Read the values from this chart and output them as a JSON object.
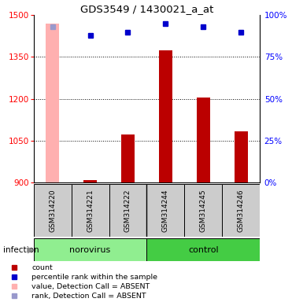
{
  "title": "GDS3549 / 1430021_a_at",
  "samples": [
    "GSM314220",
    "GSM314221",
    "GSM314222",
    "GSM314244",
    "GSM314245",
    "GSM314246"
  ],
  "groups": [
    "norovirus",
    "norovirus",
    "norovirus",
    "control",
    "control",
    "control"
  ],
  "group_labels": [
    "norovirus",
    "control"
  ],
  "group_factor": "infection",
  "ylim_left": [
    900,
    1500
  ],
  "ylim_right": [
    0,
    100
  ],
  "yticks_left": [
    900,
    1050,
    1200,
    1350,
    1500
  ],
  "yticks_right": [
    0,
    25,
    50,
    75,
    100
  ],
  "count_values": [
    1470,
    908,
    1072,
    1375,
    1205,
    1085
  ],
  "count_absent": [
    true,
    false,
    false,
    false,
    false,
    false
  ],
  "percentile_values": [
    93,
    88,
    90,
    95,
    93,
    90
  ],
  "percentile_absent": [
    true,
    false,
    false,
    false,
    false,
    false
  ],
  "bar_color_normal": "#bb0000",
  "bar_color_absent": "#ffb0b0",
  "marker_color_normal": "#0000cc",
  "marker_color_absent": "#9999cc",
  "bg_color": "#cccccc",
  "norovirus_color": "#90ee90",
  "control_color": "#44cc44",
  "bar_width": 0.35
}
